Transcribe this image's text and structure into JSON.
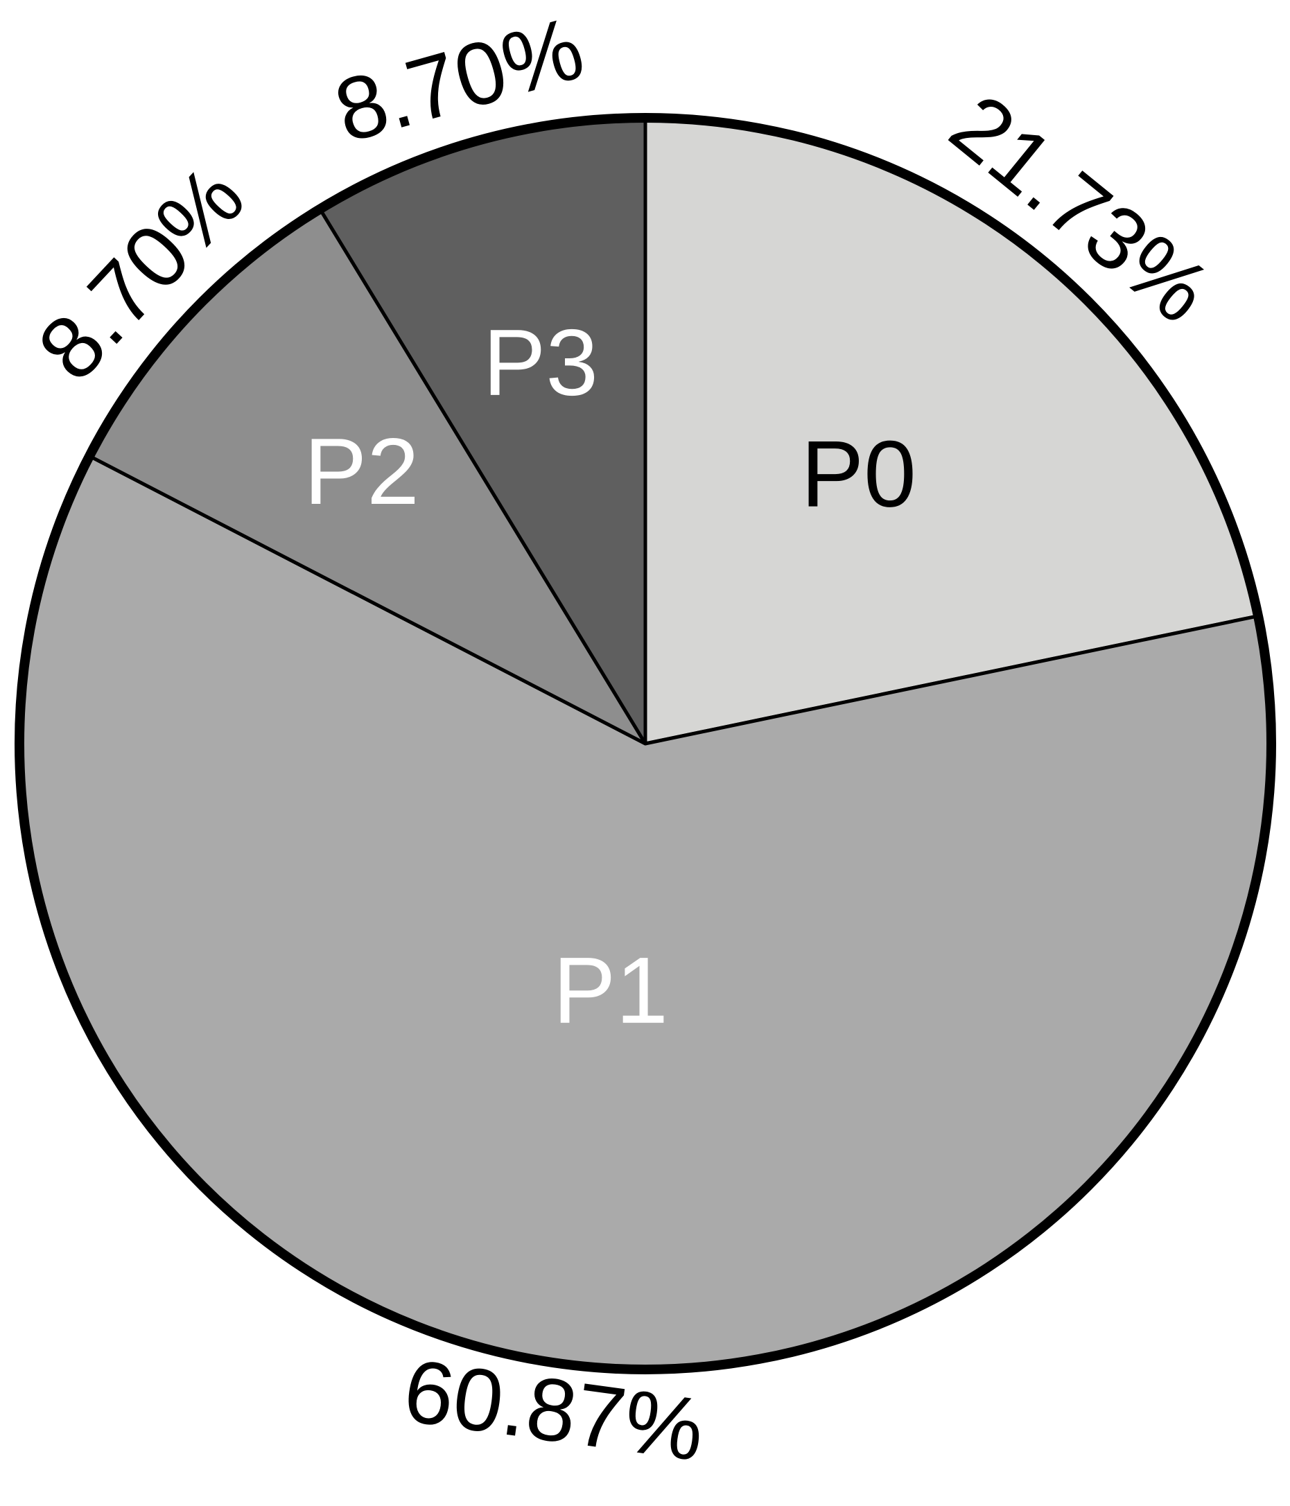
{
  "chart_data": {
    "type": "pie",
    "categories": [
      "P0",
      "P1",
      "P2",
      "P3"
    ],
    "values": [
      21.73,
      60.87,
      8.7,
      8.7
    ],
    "value_labels": [
      "21.73%",
      "60.87%",
      "8.70%",
      "8.70%"
    ],
    "colors": [
      "#d6d6d4",
      "#aaaaaa",
      "#8e8e8e",
      "#5f5f5f"
    ]
  }
}
